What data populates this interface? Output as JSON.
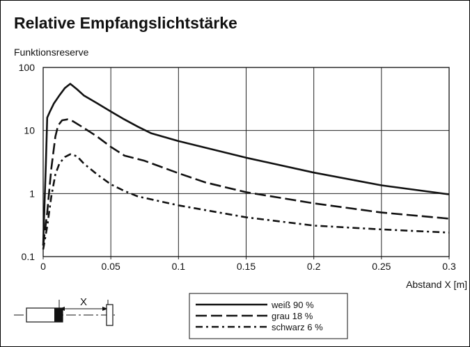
{
  "chart_data": {
    "type": "line",
    "title": "Relative Empfangslichtstärke",
    "ylabel": "Funktionsreserve",
    "xlabel": "Abstand X [m]",
    "y_scale": "log",
    "ylim": [
      0.1,
      100
    ],
    "xlim": [
      0,
      0.3
    ],
    "grid": true,
    "x_ticks": [
      "0",
      "0.05",
      "0.1",
      "0.15",
      "0.2",
      "0.25",
      "0.3"
    ],
    "y_ticks": [
      "0.1",
      "1",
      "10",
      "100"
    ],
    "legend_position": "bottom-center",
    "series": [
      {
        "name": "weiß 90 %",
        "line_style": "solid",
        "points": [
          [
            0,
            0.15
          ],
          [
            0.002,
            3
          ],
          [
            0.003,
            16
          ],
          [
            0.005,
            20
          ],
          [
            0.008,
            27
          ],
          [
            0.012,
            36
          ],
          [
            0.016,
            47
          ],
          [
            0.02,
            55
          ],
          [
            0.025,
            45
          ],
          [
            0.03,
            36
          ],
          [
            0.04,
            27
          ],
          [
            0.05,
            20
          ],
          [
            0.06,
            15
          ],
          [
            0.07,
            11.5
          ],
          [
            0.08,
            9
          ],
          [
            0.1,
            6.8
          ],
          [
            0.15,
            3.7
          ],
          [
            0.2,
            2.15
          ],
          [
            0.25,
            1.35
          ],
          [
            0.3,
            0.97
          ]
        ]
      },
      {
        "name": "grau 18 %",
        "line_style": "dashed",
        "points": [
          [
            0,
            0.15
          ],
          [
            0.003,
            0.5
          ],
          [
            0.006,
            2.5
          ],
          [
            0.009,
            8
          ],
          [
            0.011,
            12
          ],
          [
            0.014,
            14.5
          ],
          [
            0.018,
            15
          ],
          [
            0.022,
            14
          ],
          [
            0.03,
            11
          ],
          [
            0.04,
            8
          ],
          [
            0.05,
            5.5
          ],
          [
            0.06,
            4
          ],
          [
            0.075,
            3.3
          ],
          [
            0.1,
            2.1
          ],
          [
            0.12,
            1.5
          ],
          [
            0.15,
            1.05
          ],
          [
            0.2,
            0.7
          ],
          [
            0.25,
            0.5
          ],
          [
            0.3,
            0.4
          ]
        ]
      },
      {
        "name": "schwarz 6 %",
        "line_style": "dash-dot",
        "points": [
          [
            0,
            0.13
          ],
          [
            0.003,
            0.3
          ],
          [
            0.006,
            0.9
          ],
          [
            0.009,
            2
          ],
          [
            0.012,
            3
          ],
          [
            0.016,
            3.8
          ],
          [
            0.02,
            4.2
          ],
          [
            0.025,
            3.9
          ],
          [
            0.03,
            3
          ],
          [
            0.04,
            2
          ],
          [
            0.05,
            1.4
          ],
          [
            0.06,
            1.1
          ],
          [
            0.07,
            0.9
          ],
          [
            0.1,
            0.65
          ],
          [
            0.15,
            0.42
          ],
          [
            0.2,
            0.31
          ],
          [
            0.25,
            0.27
          ],
          [
            0.3,
            0.24
          ]
        ]
      }
    ]
  },
  "diagram": {
    "distance_label": "X"
  },
  "colors": {
    "line": "#111111",
    "grid": "#222222"
  }
}
